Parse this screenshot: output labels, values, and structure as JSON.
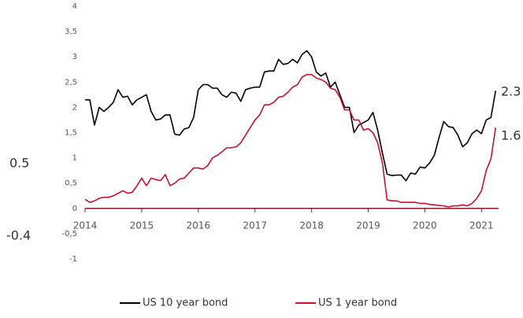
{
  "chart_data": {
    "type": "line",
    "x": [
      2014,
      2014.0833,
      2014.1667,
      2014.25,
      2014.3333,
      2014.4167,
      2014.5,
      2014.5833,
      2014.6667,
      2014.75,
      2014.8333,
      2014.9167,
      2015,
      2015.0833,
      2015.1667,
      2015.25,
      2015.3333,
      2015.4167,
      2015.5,
      2015.5833,
      2015.6667,
      2015.75,
      2015.8333,
      2015.9167,
      2016,
      2016.0833,
      2016.1667,
      2016.25,
      2016.3333,
      2016.4167,
      2016.5,
      2016.5833,
      2016.6667,
      2016.75,
      2016.8333,
      2016.9167,
      2017,
      2017.0833,
      2017.1667,
      2017.25,
      2017.3333,
      2017.4167,
      2017.5,
      2017.5833,
      2017.6667,
      2017.75,
      2017.8333,
      2017.9167,
      2018,
      2018.0833,
      2018.1667,
      2018.25,
      2018.3333,
      2018.4167,
      2018.5,
      2018.5833,
      2018.6667,
      2018.75,
      2018.8333,
      2018.9167,
      2019,
      2019.0833,
      2019.1667,
      2019.25,
      2019.3333,
      2019.4167,
      2019.5,
      2019.5833,
      2019.6667,
      2019.75,
      2019.8333,
      2019.9167,
      2020,
      2020.0833,
      2020.1667,
      2020.25,
      2020.3333,
      2020.4167,
      2020.5,
      2020.5833,
      2020.6667,
      2020.75,
      2020.8333,
      2020.9167,
      2021,
      2021.0833,
      2021.1667,
      2021.25
    ],
    "series": [
      {
        "name": "US 10 year bond",
        "color": "#000000",
        "values": [
          2.15,
          2.15,
          1.65,
          2.0,
          1.92,
          2.0,
          2.1,
          2.35,
          2.2,
          2.22,
          2.05,
          2.15,
          2.2,
          2.25,
          1.92,
          1.75,
          1.77,
          1.85,
          1.85,
          1.47,
          1.45,
          1.57,
          1.6,
          1.8,
          2.35,
          2.45,
          2.45,
          2.38,
          2.38,
          2.25,
          2.2,
          2.3,
          2.28,
          2.12,
          2.35,
          2.38,
          2.4,
          2.4,
          2.7,
          2.72,
          2.72,
          2.95,
          2.85,
          2.87,
          2.95,
          2.88,
          3.05,
          3.12,
          3.0,
          2.7,
          2.62,
          2.68,
          2.4,
          2.5,
          2.25,
          2.0,
          2.0,
          1.5,
          1.65,
          1.7,
          1.75,
          1.9,
          1.55,
          1.1,
          0.68,
          0.65,
          0.66,
          0.66,
          0.55,
          0.7,
          0.68,
          0.82,
          0.8,
          0.9,
          1.05,
          1.4,
          1.72,
          1.62,
          1.6,
          1.45,
          1.22,
          1.3,
          1.48,
          1.55,
          1.48,
          1.75,
          1.8,
          2.33
        ]
      },
      {
        "name": "US 1 year bond",
        "color": "#c8102e",
        "values": [
          0.18,
          0.12,
          0.15,
          0.2,
          0.22,
          0.22,
          0.25,
          0.3,
          0.35,
          0.3,
          0.32,
          0.45,
          0.6,
          0.45,
          0.6,
          0.57,
          0.55,
          0.67,
          0.45,
          0.5,
          0.58,
          0.6,
          0.7,
          0.8,
          0.8,
          0.78,
          0.85,
          1.0,
          1.05,
          1.12,
          1.2,
          1.2,
          1.22,
          1.3,
          1.45,
          1.6,
          1.75,
          1.85,
          2.05,
          2.05,
          2.1,
          2.2,
          2.22,
          2.3,
          2.4,
          2.45,
          2.6,
          2.65,
          2.65,
          2.58,
          2.55,
          2.5,
          2.38,
          2.35,
          2.2,
          1.95,
          1.95,
          1.75,
          1.75,
          1.55,
          1.58,
          1.5,
          1.3,
          0.9,
          0.17,
          0.15,
          0.15,
          0.12,
          0.12,
          0.12,
          0.12,
          0.1,
          0.1,
          0.08,
          0.07,
          0.06,
          0.05,
          0.03,
          0.05,
          0.05,
          0.07,
          0.05,
          0.1,
          0.2,
          0.35,
          0.75,
          0.98,
          1.6
        ]
      }
    ],
    "xlim": [
      2014,
      2021.3
    ],
    "xticks": [
      2014,
      2015,
      2016,
      2017,
      2018,
      2019,
      2020,
      2021
    ],
    "ylim": [
      -1,
      4
    ],
    "yticks": [
      {
        "value": -1,
        "label": "-1"
      },
      {
        "value": -0.5,
        "label": "-0,5"
      },
      0,
      {
        "value": 0.5,
        "label": "0,5"
      },
      1,
      {
        "value": 1.5,
        "label": "1,5"
      },
      2,
      {
        "value": 2.5,
        "label": "2,5"
      },
      3,
      {
        "value": 3.5,
        "label": "3,5"
      },
      4
    ],
    "axis_color": "#8b1a2b",
    "annotations": [
      "2.3",
      "1.6",
      "0.5",
      "-0.4"
    ]
  }
}
